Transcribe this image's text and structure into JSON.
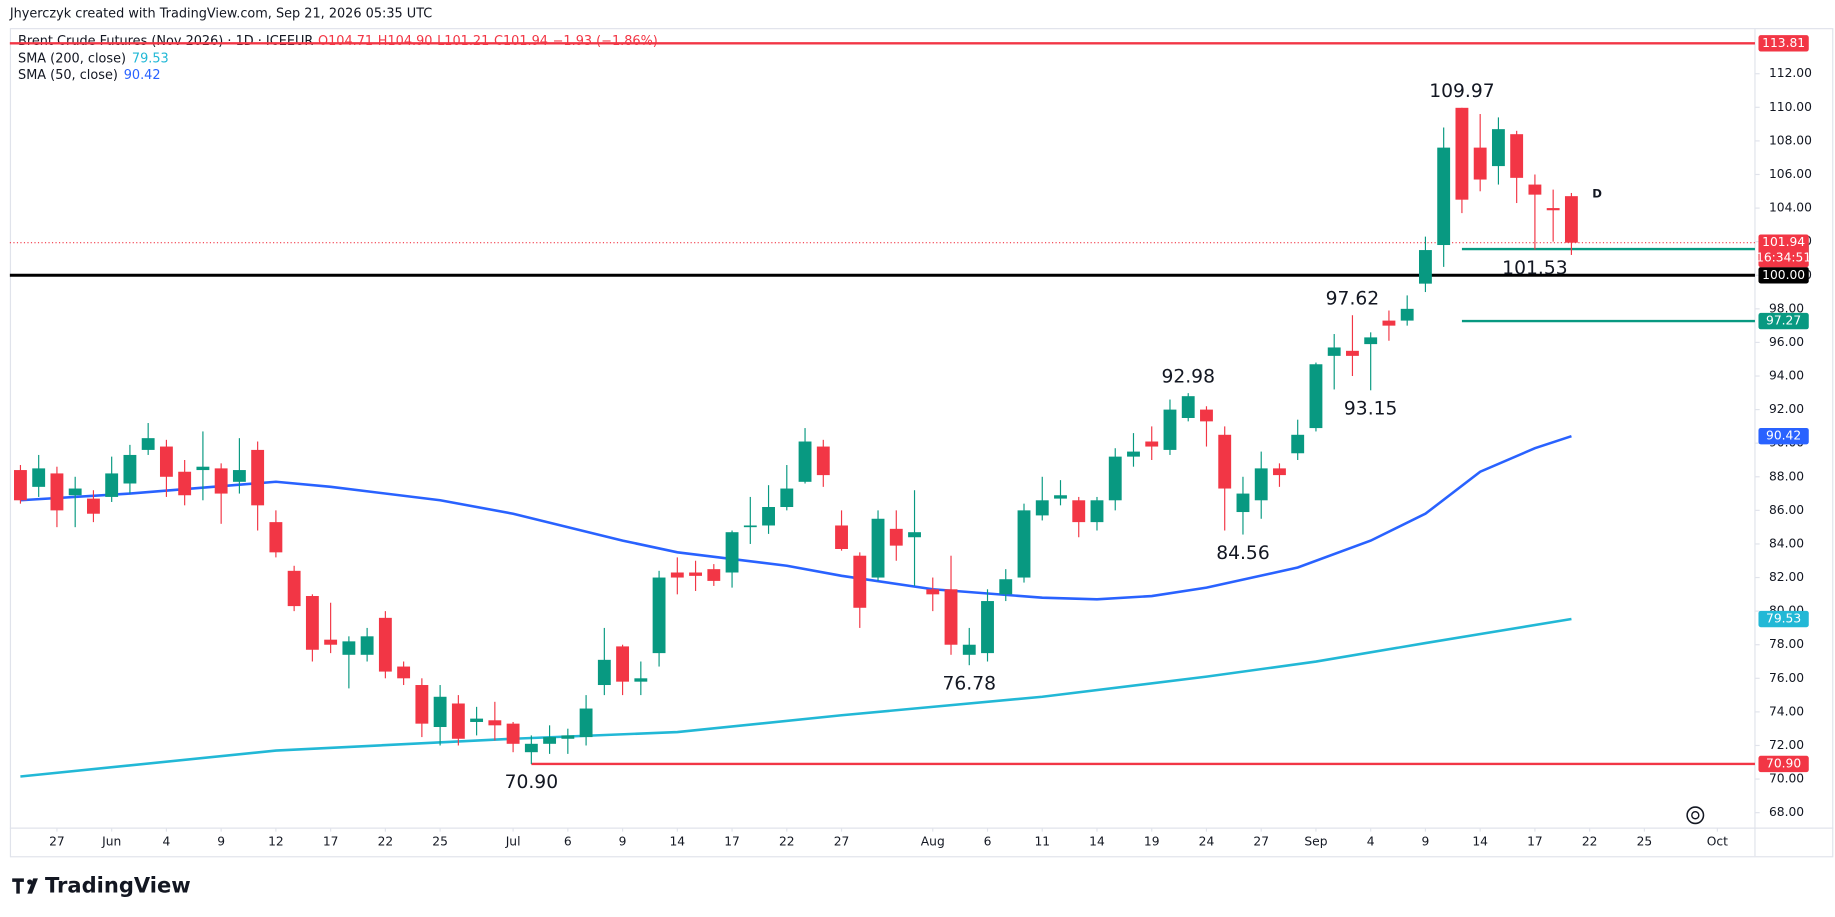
{
  "chart_data": {
    "type": "candlestick",
    "credit": "Jhyerczyk created with TradingView.com, Sep 21, 2026 05:35 UTC",
    "title": "Brent Crude Futures (Nov 2026) · 1D · ICEEUR",
    "ohlc_text": [
      "O104.71",
      "H104.90",
      "L101.21",
      "C101.94",
      "−1.93 (−1.86%)"
    ],
    "ohlc_color": "#f23645",
    "up_color": "#089981",
    "down_color": "#f23645",
    "open": [
      88.4,
      87.4,
      88.2,
      86.9,
      86.7,
      86.8,
      87.6,
      89.6,
      89.8,
      88.3,
      88.4,
      88.5,
      87.7,
      89.6,
      85.3,
      82.4,
      80.9,
      78.3,
      77.4,
      77.4,
      79.6,
      76.7,
      75.6,
      73.1,
      74.5,
      73.4,
      73.5,
      73.3,
      71.6,
      72.1,
      72.4,
      72.5,
      75.6,
      77.9,
      75.8,
      77.5,
      82.3,
      82.3,
      82.5,
      82.3,
      85.0,
      85.1,
      86.2,
      87.7,
      89.8,
      85.1,
      83.3,
      82.0,
      84.9,
      84.4,
      81.3,
      81.3,
      77.4,
      77.5,
      81.0,
      82.0,
      85.7,
      86.7,
      86.6,
      85.3,
      86.6,
      89.2,
      90.1,
      89.6,
      91.5,
      92.0,
      90.5,
      85.9,
      86.6,
      88.5,
      89.4,
      90.9,
      95.2,
      95.5,
      95.9,
      97.3,
      97.3,
      99.5,
      101.8,
      109.97,
      107.6,
      106.5,
      108.4,
      105.4,
      104.0,
      104.71
    ],
    "high": [
      88.7,
      89.3,
      88.6,
      88.0,
      87.2,
      89.2,
      89.9,
      91.2,
      90.2,
      89.0,
      90.7,
      88.8,
      90.3,
      90.1,
      86.0,
      82.7,
      81.0,
      80.5,
      78.5,
      79.0,
      80.0,
      77.0,
      76.0,
      75.6,
      75.0,
      74.3,
      74.6,
      73.4,
      72.6,
      73.2,
      73.0,
      75.0,
      79.0,
      78.0,
      77.0,
      82.4,
      83.2,
      83.0,
      82.8,
      84.8,
      86.8,
      87.5,
      88.7,
      90.9,
      90.2,
      86.0,
      83.5,
      86.0,
      86.0,
      87.2,
      82.0,
      83.3,
      79.0,
      81.3,
      82.5,
      86.4,
      88.0,
      87.8,
      86.8,
      86.8,
      89.7,
      90.6,
      91.0,
      92.6,
      92.98,
      92.2,
      91.0,
      88.0,
      89.5,
      88.8,
      91.4,
      94.8,
      96.5,
      97.62,
      96.6,
      97.9,
      98.8,
      102.3,
      108.8,
      109.97,
      109.6,
      109.4,
      108.6,
      106.0,
      105.1,
      104.9
    ],
    "low": [
      86.4,
      86.8,
      85.0,
      85.0,
      85.3,
      86.5,
      87.0,
      89.3,
      86.8,
      86.3,
      86.6,
      85.2,
      87.0,
      84.8,
      83.2,
      80.0,
      77.0,
      77.5,
      75.4,
      77.0,
      76.0,
      75.6,
      72.5,
      72.0,
      72.0,
      72.6,
      72.3,
      71.6,
      70.9,
      71.5,
      71.5,
      72.0,
      75.0,
      75.0,
      75.0,
      76.7,
      81.0,
      81.2,
      81.5,
      81.4,
      84.0,
      84.6,
      86.0,
      87.6,
      87.4,
      83.6,
      79.0,
      81.8,
      83.0,
      81.5,
      80.0,
      77.4,
      76.78,
      77.0,
      80.6,
      81.7,
      85.4,
      86.3,
      84.4,
      84.8,
      86.0,
      88.6,
      89.0,
      89.3,
      91.3,
      89.8,
      84.8,
      84.56,
      85.5,
      87.4,
      89.0,
      90.7,
      93.2,
      94.0,
      93.15,
      96.1,
      97.0,
      99.0,
      100.5,
      103.7,
      105.0,
      105.4,
      104.3,
      101.53,
      102.0,
      101.21
    ],
    "close": [
      86.6,
      88.5,
      86.0,
      87.3,
      85.8,
      88.2,
      89.3,
      90.3,
      88.0,
      86.9,
      88.6,
      87.0,
      88.4,
      86.3,
      83.5,
      80.3,
      77.7,
      78.0,
      78.2,
      78.5,
      76.4,
      76.0,
      73.3,
      74.9,
      72.4,
      73.6,
      73.2,
      72.1,
      72.1,
      72.5,
      72.6,
      74.2,
      77.1,
      75.8,
      76.0,
      82.0,
      82.0,
      82.1,
      81.8,
      84.7,
      85.1,
      86.2,
      87.3,
      90.1,
      88.1,
      83.7,
      80.2,
      85.5,
      83.9,
      84.7,
      81.0,
      78.0,
      78.0,
      80.6,
      81.9,
      86.0,
      86.6,
      86.9,
      85.3,
      86.6,
      89.2,
      89.5,
      89.8,
      92.0,
      92.8,
      91.3,
      87.3,
      87.0,
      88.5,
      88.1,
      90.5,
      94.7,
      95.7,
      95.2,
      96.3,
      97.0,
      98.0,
      101.5,
      107.6,
      104.5,
      105.7,
      108.7,
      105.8,
      104.8,
      103.87,
      101.94
    ],
    "series": [
      {
        "name": "SMA (200, close)",
        "color": "#22b8d6",
        "x": [
          0,
          14,
          27,
          36,
          45,
          56,
          65,
          71,
          77,
          85
        ],
        "values": [
          70.15,
          71.7,
          72.4,
          72.8,
          73.8,
          74.9,
          76.1,
          77.0,
          78.1,
          79.53
        ]
      },
      {
        "name": "SMA (50, close)",
        "color": "#2962ff",
        "x": [
          0,
          6,
          14,
          17,
          23,
          27,
          33,
          36,
          42,
          45,
          50,
          56,
          59,
          62,
          65,
          70,
          74,
          77,
          80,
          83,
          85
        ],
        "values": [
          86.6,
          87.0,
          87.7,
          87.4,
          86.6,
          85.8,
          84.2,
          83.5,
          82.7,
          82.1,
          81.3,
          80.8,
          80.7,
          80.9,
          81.4,
          82.6,
          84.2,
          85.8,
          88.3,
          89.7,
          90.42
        ]
      }
    ],
    "levels": [
      {
        "value": 113.81,
        "color": "#f23645",
        "style": "solid"
      },
      {
        "value": 100,
        "label": "100.00",
        "color": "#000000",
        "style": "thick"
      },
      {
        "value": 101.56,
        "color": "#089981",
        "style": "solid",
        "from": 79
      },
      {
        "value": 97.27,
        "color": "#089981",
        "style": "solid",
        "from": 79
      },
      {
        "value": 70.9,
        "label": "70.90",
        "color": "#f23645",
        "style": "solid",
        "from": 28
      }
    ],
    "countdown": "16:34:51",
    "annotations": [
      {
        "x": 79,
        "value": 109.97
      },
      {
        "x": 83,
        "value": 101.53
      },
      {
        "x": 73,
        "value": 97.62
      },
      {
        "x": 74,
        "value": 93.15
      },
      {
        "x": 64,
        "value": 92.98
      },
      {
        "x": 67,
        "value": 84.56
      },
      {
        "x": 52,
        "value": 76.78
      },
      {
        "x": 28,
        "value": 70.9,
        "label": "70.90"
      }
    ],
    "event_marker": "D",
    "xlim": [
      -0.58,
      95.06
    ],
    "xticks": [
      {
        "value": 2,
        "label": "27"
      },
      {
        "value": 5,
        "label": "Jun"
      },
      {
        "value": 8,
        "label": "4"
      },
      {
        "value": 11,
        "label": "9"
      },
      {
        "value": 14,
        "label": "12"
      },
      {
        "value": 17,
        "label": "17"
      },
      {
        "value": 20,
        "label": "22"
      },
      {
        "value": 23,
        "label": "25"
      },
      {
        "value": 27,
        "label": "Jul"
      },
      {
        "value": 30,
        "label": "6"
      },
      {
        "value": 33,
        "label": "9"
      },
      {
        "value": 36,
        "label": "14"
      },
      {
        "value": 39,
        "label": "17"
      },
      {
        "value": 42,
        "label": "22"
      },
      {
        "value": 45,
        "label": "27"
      },
      {
        "value": 50,
        "label": "Aug"
      },
      {
        "value": 53,
        "label": "6"
      },
      {
        "value": 56,
        "label": "11"
      },
      {
        "value": 59,
        "label": "14"
      },
      {
        "value": 62,
        "label": "19"
      },
      {
        "value": 65,
        "label": "24"
      },
      {
        "value": 68,
        "label": "27"
      },
      {
        "value": 71,
        "label": "Sep"
      },
      {
        "value": 74,
        "label": "4"
      },
      {
        "value": 77,
        "label": "9"
      },
      {
        "value": 80,
        "label": "14"
      },
      {
        "value": 83,
        "label": "17"
      },
      {
        "value": 86,
        "label": "22"
      },
      {
        "value": 89,
        "label": "25"
      },
      {
        "value": 93,
        "label": "Oct"
      }
    ],
    "ylim": [
      67.08,
      114.44
    ],
    "yticks": [
      {
        "value": 68,
        "label": "68.00"
      },
      {
        "value": 70,
        "label": "70.00"
      },
      {
        "value": 72,
        "label": "72.00"
      },
      {
        "value": 74,
        "label": "74.00"
      },
      {
        "value": 76,
        "label": "76.00"
      },
      {
        "value": 78,
        "label": "78.00"
      },
      {
        "value": 80,
        "label": "80.00"
      },
      {
        "value": 82,
        "label": "82.00"
      },
      {
        "value": 84,
        "label": "84.00"
      },
      {
        "value": 86,
        "label": "86.00"
      },
      {
        "value": 88,
        "label": "88.00"
      },
      {
        "value": 90,
        "label": "90.00"
      },
      {
        "value": 92,
        "label": "92.00"
      },
      {
        "value": 94,
        "label": "94.00"
      },
      {
        "value": 96,
        "label": "96.00"
      },
      {
        "value": 98,
        "label": "98.00"
      },
      {
        "value": 100,
        "label": "100.00"
      },
      {
        "value": 102,
        "label": "102.00"
      },
      {
        "value": 104,
        "label": "104.00"
      },
      {
        "value": 106,
        "label": "106.00"
      },
      {
        "value": 108,
        "label": "108.00"
      },
      {
        "value": 110,
        "label": "110.00"
      },
      {
        "value": 112,
        "label": "112.00"
      }
    ],
    "logo": "TradingView"
  }
}
